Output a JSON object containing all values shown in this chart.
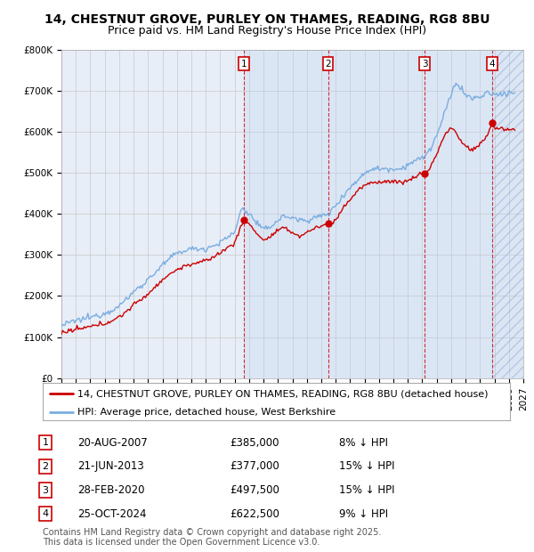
{
  "title": "14, CHESTNUT GROVE, PURLEY ON THAMES, READING, RG8 8BU",
  "subtitle": "Price paid vs. HM Land Registry's House Price Index (HPI)",
  "ylim": [
    0,
    800000
  ],
  "yticks": [
    0,
    100000,
    200000,
    300000,
    400000,
    500000,
    600000,
    700000,
    800000
  ],
  "ytick_labels": [
    "£0",
    "£100K",
    "£200K",
    "£300K",
    "£400K",
    "£500K",
    "£600K",
    "£700K",
    "£800K"
  ],
  "xlim_start": 1995.0,
  "xlim_end": 2027.0,
  "background_color": "#ffffff",
  "plot_bg_color": "#e8eef8",
  "grid_color": "#c8c8c8",
  "hpi_color": "#7aade0",
  "price_color": "#cc0000",
  "transactions": [
    {
      "num": 1,
      "date_str": "20-AUG-2007",
      "price": 385000,
      "pct": "8%",
      "date_x": 2007.64
    },
    {
      "num": 2,
      "date_str": "21-JUN-2013",
      "price": 377000,
      "pct": "15%",
      "date_x": 2013.47
    },
    {
      "num": 3,
      "date_str": "28-FEB-2020",
      "price": 497500,
      "pct": "15%",
      "date_x": 2020.16
    },
    {
      "num": 4,
      "date_str": "25-OCT-2024",
      "price": 622500,
      "pct": "9%",
      "date_x": 2024.82
    }
  ],
  "legend_line1": "14, CHESTNUT GROVE, PURLEY ON THAMES, READING, RG8 8BU (detached house)",
  "legend_line2": "HPI: Average price, detached house, West Berkshire",
  "footer1": "Contains HM Land Registry data © Crown copyright and database right 2025.",
  "footer2": "This data is licensed under the Open Government Licence v3.0.",
  "title_fontsize": 10,
  "subtitle_fontsize": 9,
  "tick_fontsize": 7.5,
  "legend_fontsize": 8,
  "table_fontsize": 8.5,
  "footer_fontsize": 7
}
